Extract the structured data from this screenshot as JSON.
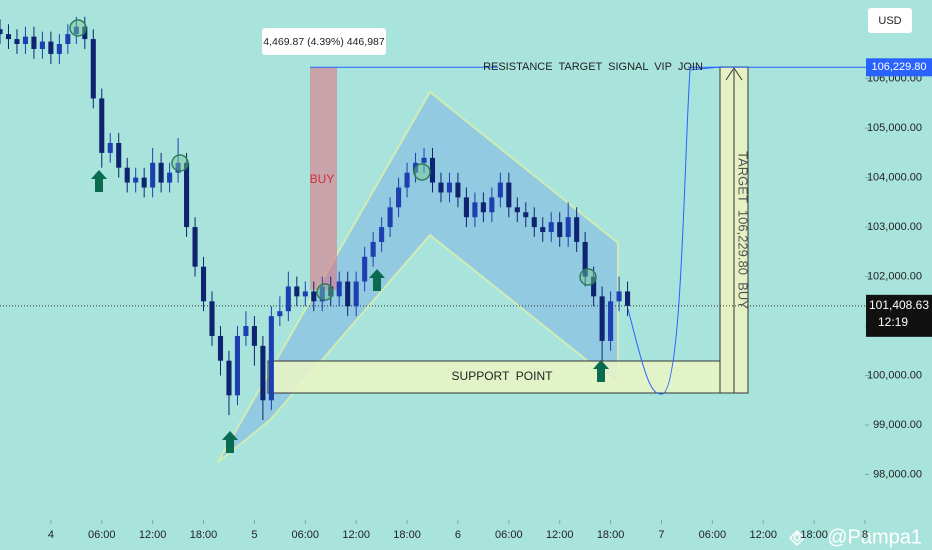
{
  "chart_data": {
    "type": "candlestick",
    "currency": "USD",
    "x": [
      -6,
      -5,
      -4,
      -3,
      -2,
      -1,
      0,
      1,
      2,
      3,
      4,
      5,
      6,
      7,
      8,
      9,
      10,
      11,
      12,
      13,
      14,
      15,
      16,
      17,
      18,
      19,
      20,
      21,
      22,
      23,
      24,
      25,
      26,
      27,
      28,
      29,
      30,
      31,
      32,
      33,
      34,
      35,
      36,
      37,
      38,
      39,
      40,
      41,
      42,
      43,
      44,
      45,
      46,
      47,
      48,
      49,
      50,
      51,
      52,
      53,
      54,
      55,
      56,
      57,
      58,
      59,
      60,
      61,
      62,
      63,
      64,
      65,
      66,
      67,
      68
    ],
    "open": [
      107000,
      106900,
      106800,
      106700,
      106850,
      106600,
      106750,
      106500,
      106700,
      106900,
      107050,
      106800,
      105600,
      104500,
      104700,
      104200,
      103900,
      104000,
      103800,
      104300,
      103900,
      104100,
      104300,
      103000,
      102200,
      101500,
      100800,
      100300,
      99600,
      100800,
      101000,
      100600,
      99500,
      101200,
      101300,
      101800,
      101600,
      101700,
      101500,
      101800,
      101600,
      101900,
      101400,
      101900,
      102400,
      102700,
      103000,
      103400,
      103800,
      104100,
      104300,
      104400,
      103900,
      103700,
      103900,
      103600,
      103200,
      103500,
      103300,
      103600,
      103900,
      103400,
      103300,
      103200,
      103000,
      102900,
      103100,
      102800,
      103200,
      102700,
      102000,
      101600,
      100700,
      101500,
      101700
    ],
    "high": [
      107200,
      107100,
      107000,
      107050,
      107050,
      106950,
      106950,
      106900,
      107100,
      107250,
      107250,
      107000,
      105800,
      104900,
      104900,
      104400,
      104200,
      104200,
      104600,
      104500,
      104300,
      104800,
      104500,
      103200,
      102400,
      101700,
      101000,
      100500,
      101000,
      101300,
      101200,
      100800,
      101400,
      101600,
      102100,
      102000,
      101900,
      101900,
      102000,
      102000,
      102100,
      102100,
      102100,
      102600,
      102900,
      103200,
      103600,
      104000,
      104300,
      104500,
      104600,
      104600,
      104100,
      104100,
      104100,
      103800,
      103700,
      103700,
      103800,
      104100,
      104100,
      103600,
      103500,
      103400,
      103200,
      103300,
      103300,
      103500,
      103400,
      102900,
      102200,
      101800,
      101700,
      102000,
      101900
    ],
    "low": [
      106700,
      106600,
      106500,
      106500,
      106400,
      106400,
      106300,
      106300,
      106500,
      106700,
      106600,
      105400,
      104200,
      104300,
      104000,
      103700,
      103700,
      103600,
      103600,
      103700,
      103700,
      103900,
      102800,
      102000,
      101300,
      100600,
      100000,
      99200,
      99400,
      100600,
      100200,
      99100,
      99300,
      101000,
      101100,
      101400,
      101400,
      101300,
      101300,
      101400,
      101400,
      101200,
      101200,
      101700,
      102200,
      102500,
      102800,
      103200,
      103600,
      103900,
      104100,
      103700,
      103500,
      103500,
      103400,
      103000,
      103000,
      103100,
      103100,
      103400,
      103200,
      103100,
      103000,
      102800,
      102700,
      102700,
      102600,
      102600,
      102500,
      101800,
      101400,
      100300,
      100500,
      101300,
      101200
    ],
    "close": [
      106900,
      106800,
      106700,
      106850,
      106600,
      106750,
      106500,
      106700,
      106900,
      107050,
      106800,
      105600,
      104500,
      104700,
      104200,
      103900,
      104000,
      103800,
      104300,
      103900,
      104100,
      104300,
      103000,
      102200,
      101500,
      100800,
      100300,
      99600,
      100800,
      101000,
      100600,
      99500,
      101200,
      101300,
      101800,
      101600,
      101700,
      101500,
      101800,
      101600,
      101900,
      101400,
      101900,
      102400,
      102700,
      103000,
      103400,
      103800,
      104100,
      104300,
      104400,
      103900,
      103700,
      103900,
      103600,
      103200,
      103500,
      103300,
      103600,
      103900,
      103400,
      103300,
      103200,
      103000,
      102900,
      103100,
      102800,
      103200,
      102700,
      102000,
      101600,
      100700,
      101500,
      101700,
      101408.63
    ],
    "up_color": "#1d3fb0",
    "down_color": "#0e2470",
    "xlim": [
      -6,
      96
    ],
    "ylim": [
      97080,
      107590
    ],
    "xticks": [
      {
        "value": 0,
        "label": "4"
      },
      {
        "value": 6,
        "label": "06:00"
      },
      {
        "value": 12,
        "label": "12:00"
      },
      {
        "value": 18,
        "label": "18:00"
      },
      {
        "value": 24,
        "label": "5"
      },
      {
        "value": 30,
        "label": "06:00"
      },
      {
        "value": 36,
        "label": "12:00"
      },
      {
        "value": 42,
        "label": "18:00"
      },
      {
        "value": 48,
        "label": "6"
      },
      {
        "value": 54,
        "label": "06:00"
      },
      {
        "value": 60,
        "label": "12:00"
      },
      {
        "value": 66,
        "label": "18:00"
      },
      {
        "value": 72,
        "label": "7"
      },
      {
        "value": 78,
        "label": "06:00"
      },
      {
        "value": 84,
        "label": "12:00"
      },
      {
        "value": 90,
        "label": "18:00"
      },
      {
        "value": 96,
        "label": "8"
      }
    ],
    "yticks": [
      {
        "value": 98000,
        "label": "98,000.00"
      },
      {
        "value": 99000,
        "label": "99,000.00"
      },
      {
        "value": 100000,
        "label": "100,000.00"
      },
      {
        "value": 101000,
        "label": "101,000.00"
      },
      {
        "value": 102000,
        "label": "102,000.00"
      },
      {
        "value": 103000,
        "label": "103,000.00"
      },
      {
        "value": 104000,
        "label": "104,000.00"
      },
      {
        "value": 105000,
        "label": "105,000.00"
      },
      {
        "value": 106000,
        "label": "106,000.00"
      }
    ],
    "last_price": {
      "value": 101408.63,
      "label": "101,408.63"
    },
    "countdown": "12:19",
    "resistance": {
      "value": 106229.8,
      "label": "106,229.80",
      "text": "RESISTANCE  TARGET  SIGNAL  VIP  JOIN"
    },
    "annotations": {
      "measure": "4,469.87 (4.39%) 446,987",
      "buy": "BUY",
      "target": "TARGET  106,229.80  BUY",
      "support": "SUPPORT  POINT"
    },
    "watermark": "@Pampa1"
  }
}
